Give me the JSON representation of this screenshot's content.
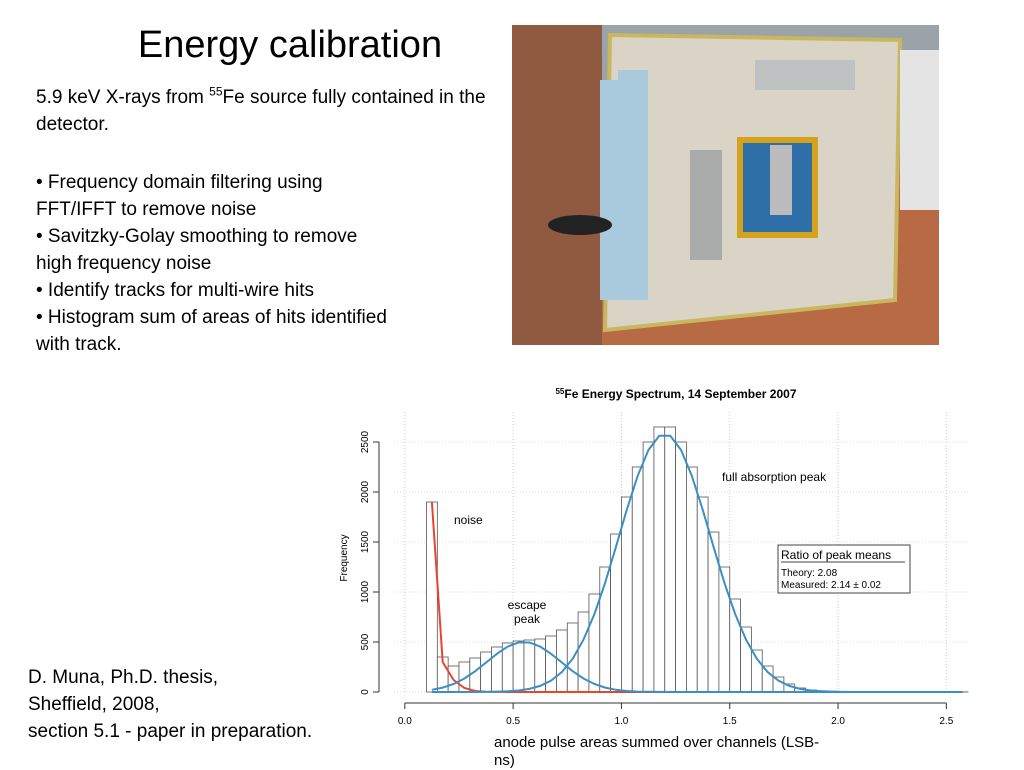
{
  "title": "Energy calibration",
  "intro": {
    "before": "5.9 keV X-rays from ",
    "sup": "55",
    "after": "Fe source fully contained in the detector."
  },
  "bullets": [
    [
      "• Frequency domain filtering using",
      "FFT/IFFT to remove noise"
    ],
    [
      "• Savitzky-Golay smoothing to remove",
      "high frequency noise"
    ],
    [
      "• Identify tracks for multi-wire hits"
    ],
    [
      "• Histogram sum of areas of hits identified",
      "with track."
    ]
  ],
  "citation": [
    "D. Muna, Ph.D. thesis,",
    "Sheffield, 2008,",
    "section 5.1 - paper in preparation."
  ],
  "chart_data": {
    "type": "histogram",
    "title": {
      "sup": "55",
      "text": "Fe Energy Spectrum, 14 September 2007"
    },
    "xlabel": "anode pulse areas summed over channels (LSB-ns)",
    "ylabel": "Frequency",
    "bins": [
      0.1,
      0.15,
      0.2,
      0.25,
      0.3,
      0.35,
      0.4,
      0.45,
      0.5,
      0.55,
      0.6,
      0.65,
      0.7,
      0.75,
      0.8,
      0.85,
      0.9,
      0.95,
      1.0,
      1.05,
      1.1,
      1.15,
      1.2,
      1.25,
      1.3,
      1.35,
      1.4,
      1.45,
      1.5,
      1.55,
      1.6,
      1.65,
      1.7,
      1.75,
      1.8,
      1.85,
      1.9,
      1.95,
      2.0,
      2.05,
      2.1,
      2.15,
      2.2,
      2.25,
      2.3,
      2.35,
      2.4,
      2.45,
      2.5,
      2.55,
      2.6
    ],
    "values": [
      1900,
      350,
      260,
      300,
      340,
      400,
      450,
      490,
      510,
      520,
      530,
      560,
      620,
      690,
      800,
      980,
      1250,
      1580,
      1950,
      2250,
      2500,
      2650,
      2650,
      2500,
      2250,
      1950,
      1600,
      1250,
      930,
      650,
      420,
      260,
      150,
      80,
      40,
      20,
      12,
      8,
      5,
      4,
      3,
      2,
      2,
      1,
      1,
      1,
      1,
      1,
      1,
      1
    ],
    "color": "#ffffff",
    "edgecolor": "#555555",
    "curve_x": [
      0.125,
      0.175,
      0.225,
      0.275,
      0.325,
      0.375,
      0.425,
      0.475,
      0.525,
      0.575,
      0.625,
      0.675,
      0.725,
      0.775,
      0.825,
      0.875,
      0.925,
      0.975,
      1.025,
      1.075,
      1.125,
      1.175,
      1.225,
      1.275,
      1.325,
      1.375,
      1.425,
      1.475,
      1.525,
      1.575,
      1.625,
      1.675,
      1.725,
      1.775,
      1.825,
      1.875,
      1.925,
      1.975,
      2.025,
      2.075,
      2.125,
      2.175,
      2.225,
      2.275,
      2.325,
      2.375,
      2.425,
      2.475,
      2.525,
      2.575
    ],
    "lines": [
      {
        "color": "#e8452c",
        "values": [
          1900,
          300,
          120,
          40,
          10,
          3,
          1,
          0,
          0,
          0,
          0,
          0,
          0,
          0,
          0,
          0,
          0,
          0,
          0,
          0,
          0,
          0,
          0,
          0,
          0,
          0,
          0,
          0,
          0,
          0,
          0,
          0,
          0,
          0,
          0,
          0,
          0,
          0,
          0,
          0,
          0,
          0,
          0,
          0,
          0,
          0,
          0,
          0,
          0,
          0
        ]
      },
      {
        "color": "#3b8fc4",
        "values": [
          22,
          44,
          80,
          135,
          208,
          295,
          382,
          454,
          495,
          495,
          454,
          382,
          295,
          208,
          135,
          80,
          44,
          22,
          10,
          4,
          2,
          1,
          0,
          0,
          0,
          0,
          0,
          0,
          0,
          0,
          0,
          0,
          0,
          0,
          0,
          0,
          0,
          0,
          0,
          0,
          0,
          0,
          0,
          0,
          0,
          0,
          0,
          0,
          0,
          0
        ]
      },
      {
        "color": "#3b8fc4",
        "values": [
          0,
          0,
          0,
          0,
          0,
          1,
          3,
          7,
          15,
          31,
          61,
          113,
          200,
          333,
          524,
          779,
          1094,
          1453,
          1823,
          2162,
          2421,
          2562,
          2562,
          2421,
          2162,
          1823,
          1453,
          1094,
          779,
          524,
          333,
          200,
          113,
          61,
          31,
          15,
          7,
          3,
          1,
          0,
          0,
          0,
          0,
          0,
          0,
          0,
          0,
          0,
          0,
          0
        ]
      }
    ],
    "xlim": [
      -0.05,
      2.6
    ],
    "ylim": [
      0,
      2800
    ],
    "xticks": [
      {
        "value": 0,
        "label": "0.0"
      },
      0.5,
      {
        "value": 1,
        "label": "1.0"
      },
      1.5,
      {
        "value": 2,
        "label": "2.0"
      },
      2.5
    ],
    "yticks": [
      0,
      500,
      1000,
      1500,
      2000,
      2500
    ],
    "grid": true,
    "annotations": [
      {
        "text": "noise"
      },
      {
        "text": "escape"
      },
      {
        "text": "peak"
      },
      {
        "text": "full absorption peak"
      }
    ],
    "legend_box": {
      "heading": "Ratio of peak means",
      "lines": [
        "Theory: 2.08",
        "Measured: 2.14 ± 0.02"
      ]
    }
  }
}
